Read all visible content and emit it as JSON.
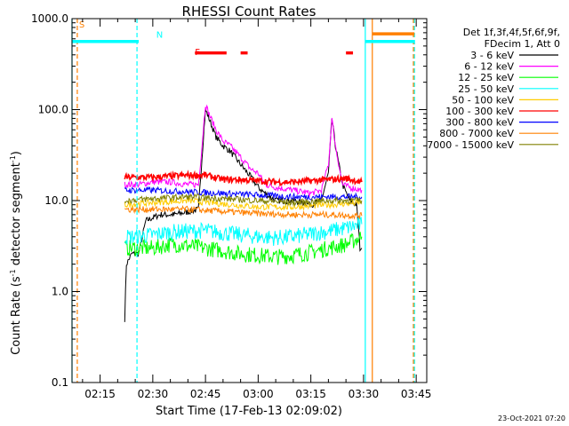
{
  "chart_data": {
    "type": "line",
    "title": "RHESSI Count Rates",
    "xlabel": "Start Time (17-Feb-13 02:09:02)",
    "ylabel_main": "Count Rate (s",
    "ylabel_sup1": "-1",
    "ylabel_mid": " detector segment",
    "ylabel_sup2": "-1",
    "ylabel_end": ")",
    "y_scale": "log",
    "ylim": [
      0.1,
      1000
    ],
    "xlim": [
      "02:07",
      "03:48"
    ],
    "x_ticks": [
      {
        "label": "02:15",
        "minute": 15
      },
      {
        "label": "02:30",
        "minute": 30
      },
      {
        "label": "02:45",
        "minute": 45
      },
      {
        "label": "03:00",
        "minute": 60
      },
      {
        "label": "03:15",
        "minute": 75
      },
      {
        "label": "03:30",
        "minute": 90
      },
      {
        "label": "03:45",
        "minute": 105
      }
    ],
    "y_ticks": [
      {
        "label": "0.1",
        "value": 0.1
      },
      {
        "label": "1.0",
        "value": 1
      },
      {
        "label": "10.0",
        "value": 10
      },
      {
        "label": "100.0",
        "value": 100
      },
      {
        "label": "1000.0",
        "value": 1000
      }
    ],
    "legend_position": "outside-right",
    "legend_header": [
      "Det 1f,3f,4f,5f,6f,9f,",
      "FDecim 1, Att 0"
    ],
    "series": [
      {
        "name": "3 - 6 keV",
        "color": "#000000",
        "points": [
          [
            22,
            0.5
          ],
          [
            22.5,
            2.0
          ],
          [
            24,
            2.6
          ],
          [
            26,
            2.6
          ],
          [
            28,
            6
          ],
          [
            32,
            7
          ],
          [
            36,
            7
          ],
          [
            40,
            7.5
          ],
          [
            43,
            8
          ],
          [
            44,
            30
          ],
          [
            45,
            100
          ],
          [
            46,
            80
          ],
          [
            48,
            50
          ],
          [
            50,
            40
          ],
          [
            52,
            35
          ],
          [
            55,
            25
          ],
          [
            58,
            18
          ],
          [
            60,
            14
          ],
          [
            62,
            12
          ],
          [
            65,
            10
          ],
          [
            70,
            10
          ],
          [
            75,
            9
          ],
          [
            78,
            10
          ],
          [
            80,
            20
          ],
          [
            81,
            80
          ],
          [
            82,
            40
          ],
          [
            84,
            15
          ],
          [
            86,
            10
          ],
          [
            88,
            9
          ],
          [
            89,
            3
          ],
          [
            89.5,
            3
          ]
        ]
      },
      {
        "name": "6 - 12 keV",
        "color": "#ff00ff",
        "points": [
          [
            22,
            15
          ],
          [
            26,
            15
          ],
          [
            30,
            16
          ],
          [
            35,
            16
          ],
          [
            40,
            15
          ],
          [
            43,
            15
          ],
          [
            44,
            40
          ],
          [
            45,
            115
          ],
          [
            46,
            90
          ],
          [
            48,
            60
          ],
          [
            50,
            45
          ],
          [
            52,
            40
          ],
          [
            55,
            30
          ],
          [
            58,
            22
          ],
          [
            60,
            20
          ],
          [
            62,
            15
          ],
          [
            65,
            14
          ],
          [
            70,
            13
          ],
          [
            75,
            12
          ],
          [
            78,
            13
          ],
          [
            80,
            25
          ],
          [
            81,
            80
          ],
          [
            82,
            40
          ],
          [
            84,
            15
          ],
          [
            86,
            14
          ],
          [
            89.5,
            13
          ]
        ]
      },
      {
        "name": "12 - 25 keV",
        "color": "#00ff00",
        "points": [
          [
            22,
            3
          ],
          [
            25,
            3
          ],
          [
            30,
            3
          ],
          [
            35,
            3.3
          ],
          [
            40,
            3.2
          ],
          [
            45,
            3
          ],
          [
            50,
            2.8
          ],
          [
            55,
            2.6
          ],
          [
            60,
            2.5
          ],
          [
            65,
            2.4
          ],
          [
            70,
            2.5
          ],
          [
            75,
            2.7
          ],
          [
            80,
            3
          ],
          [
            85,
            3.3
          ],
          [
            89.5,
            4
          ]
        ]
      },
      {
        "name": "25 - 50 keV",
        "color": "#00ffff",
        "points": [
          [
            22,
            4
          ],
          [
            25,
            4
          ],
          [
            30,
            4.2
          ],
          [
            35,
            4.5
          ],
          [
            40,
            4.6
          ],
          [
            45,
            4.7
          ],
          [
            50,
            4.4
          ],
          [
            55,
            4.2
          ],
          [
            60,
            4
          ],
          [
            65,
            3.9
          ],
          [
            70,
            4
          ],
          [
            75,
            4.3
          ],
          [
            80,
            4.6
          ],
          [
            85,
            5
          ],
          [
            89.5,
            5.5
          ]
        ]
      },
      {
        "name": "50 - 100 keV",
        "color": "#ffcc00",
        "points": [
          [
            22,
            9
          ],
          [
            30,
            9.5
          ],
          [
            40,
            10
          ],
          [
            50,
            9.2
          ],
          [
            60,
            8.5
          ],
          [
            70,
            8.5
          ],
          [
            80,
            9
          ],
          [
            89.5,
            9.5
          ]
        ]
      },
      {
        "name": "100 - 300 keV",
        "color": "#ff0000",
        "points": [
          [
            22,
            18
          ],
          [
            30,
            18
          ],
          [
            40,
            19
          ],
          [
            45,
            19
          ],
          [
            50,
            17
          ],
          [
            55,
            17
          ],
          [
            60,
            16.5
          ],
          [
            65,
            16
          ],
          [
            70,
            16
          ],
          [
            75,
            16.5
          ],
          [
            80,
            17
          ],
          [
            85,
            17.5
          ],
          [
            89.5,
            16
          ]
        ]
      },
      {
        "name": "300 - 800 keV",
        "color": "#0000ff",
        "points": [
          [
            22,
            13
          ],
          [
            30,
            13
          ],
          [
            40,
            12.5
          ],
          [
            50,
            12
          ],
          [
            60,
            11.5
          ],
          [
            70,
            11
          ],
          [
            80,
            11
          ],
          [
            89.5,
            11
          ]
        ]
      },
      {
        "name": "800 - 7000 keV",
        "color": "#ff8000",
        "points": [
          [
            22,
            8
          ],
          [
            30,
            8
          ],
          [
            40,
            8
          ],
          [
            50,
            7.6
          ],
          [
            60,
            7.2
          ],
          [
            70,
            7
          ],
          [
            80,
            7
          ],
          [
            89.5,
            6.8
          ]
        ]
      },
      {
        "name": "7000 - 15000 keV",
        "color": "#808000",
        "points": [
          [
            22,
            10
          ],
          [
            30,
            10.5
          ],
          [
            40,
            11
          ],
          [
            50,
            10.5
          ],
          [
            60,
            10
          ],
          [
            70,
            9.5
          ],
          [
            80,
            10
          ],
          [
            89.5,
            10
          ]
        ]
      }
    ],
    "annotations": [
      {
        "label": "S",
        "color": "#ff8000",
        "minute": 9,
        "y": 800
      },
      {
        "label": "N",
        "color": "#00ffff",
        "minute": 31,
        "y": 620
      },
      {
        "label": "F",
        "color": "#ff0000",
        "minute": 42,
        "y": 400
      }
    ],
    "flag_bars": [
      {
        "color": "#00ffff",
        "y": 560,
        "ranges": [
          [
            7,
            26
          ],
          [
            90.5,
            104.5
          ]
        ]
      },
      {
        "color": "#ff8000",
        "y": 680,
        "ranges": [
          [
            92.5,
            104.5
          ]
        ]
      },
      {
        "color": "#ff0000",
        "y": 420,
        "ranges": [
          [
            42,
            51
          ],
          [
            55,
            57
          ],
          [
            85,
            87
          ]
        ]
      }
    ],
    "vertical_lines": [
      {
        "color": "#ff8000",
        "minute": 8.5,
        "style": "dashed"
      },
      {
        "color": "#00ffff",
        "minute": 7,
        "style": "solid"
      },
      {
        "color": "#00ffff",
        "minute": 25.5,
        "style": "dashed"
      },
      {
        "color": "#00ffff",
        "minute": 90.5,
        "style": "solid"
      },
      {
        "color": "#ff8000",
        "minute": 92.5,
        "style": "solid"
      },
      {
        "color": "#00ffff",
        "minute": 104.5,
        "style": "dashed"
      },
      {
        "color": "#ff8000",
        "minute": 104.2,
        "style": "dashed"
      }
    ],
    "footer_timestamp": "23-Oct-2021 07:20"
  }
}
